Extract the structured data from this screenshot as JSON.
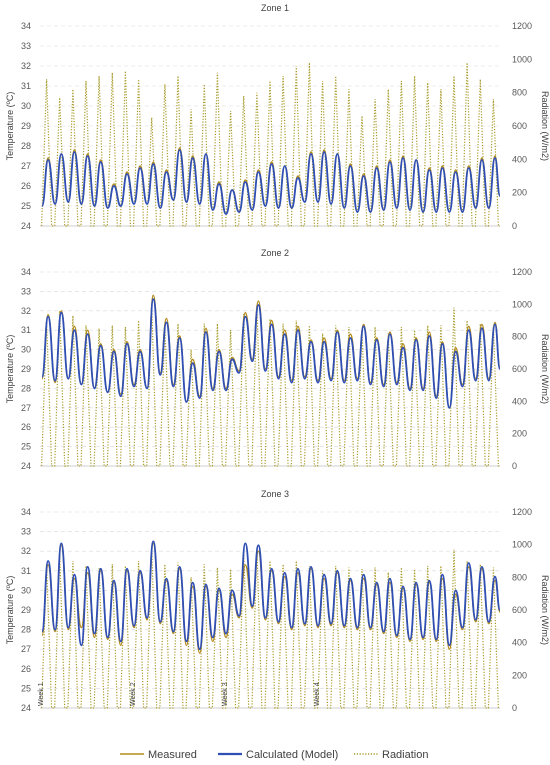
{
  "chart_data": [
    {
      "type": "line",
      "title": "Zone 1",
      "ylabel": "Temperature (ºC)",
      "y2label": "Radiation (W/m2)",
      "ylim": [
        24,
        34
      ],
      "y2lim": [
        0,
        1200
      ],
      "yticks": [
        "24",
        "25",
        "26",
        "27",
        "28",
        "29",
        "30",
        "31",
        "32",
        "33",
        "34"
      ],
      "y2ticks": [
        "0",
        "200",
        "400",
        "600",
        "800",
        "1000",
        "1200"
      ],
      "days": 35,
      "grid": true,
      "series": [
        {
          "name": "Measured",
          "color": "#b38b1d",
          "style": "solid",
          "daily_max": [
            27.4,
            27.6,
            27.8,
            27.6,
            27.3,
            26.1,
            26.7,
            27.0,
            27.2,
            26.8,
            27.9,
            27.5,
            27.6,
            26.2,
            25.8,
            26.3,
            26.8,
            27.2,
            27.0,
            26.5,
            27.7,
            27.8,
            27.6,
            27.1,
            26.6,
            27.0,
            27.3,
            27.5,
            27.3,
            26.9,
            27.0,
            26.8,
            27.0,
            27.4,
            27.5
          ],
          "daily_min": [
            25.0,
            25.1,
            25.2,
            25.1,
            25.0,
            24.9,
            25.0,
            25.1,
            25.1,
            24.9,
            25.3,
            25.2,
            25.1,
            24.8,
            24.6,
            24.7,
            24.8,
            25.0,
            24.9,
            24.9,
            25.2,
            25.2,
            25.1,
            24.9,
            24.7,
            24.7,
            24.8,
            24.9,
            24.8,
            24.7,
            24.7,
            24.7,
            24.7,
            24.9,
            24.9
          ]
        },
        {
          "name": "Calculated (Model)",
          "color": "#2f4fb4",
          "style": "solid",
          "daily_max": [
            27.3,
            27.6,
            27.7,
            27.5,
            27.2,
            26.0,
            26.6,
            26.9,
            27.1,
            26.7,
            27.8,
            27.4,
            27.6,
            26.1,
            25.8,
            26.2,
            26.7,
            27.1,
            27.0,
            26.4,
            27.6,
            27.7,
            27.6,
            27.0,
            26.5,
            26.9,
            27.2,
            27.4,
            27.3,
            26.8,
            26.9,
            26.7,
            26.9,
            27.3,
            27.4
          ],
          "daily_min": [
            25.0,
            25.1,
            25.2,
            25.1,
            25.0,
            24.9,
            25.0,
            25.1,
            25.1,
            24.9,
            25.3,
            25.2,
            25.1,
            24.8,
            24.6,
            24.7,
            24.8,
            25.0,
            24.9,
            24.9,
            25.2,
            25.2,
            25.1,
            24.9,
            24.7,
            24.7,
            24.8,
            24.9,
            24.8,
            24.7,
            24.7,
            24.7,
            24.7,
            24.9,
            24.9
          ]
        },
        {
          "name": "Radiation",
          "color": "#a89b2a",
          "style": "dotted",
          "axis": "right",
          "daily_peak": [
            880,
            770,
            820,
            870,
            900,
            920,
            930,
            880,
            650,
            850,
            900,
            700,
            850,
            920,
            690,
            780,
            800,
            870,
            900,
            960,
            980,
            870,
            900,
            820,
            660,
            760,
            820,
            870,
            900,
            860,
            820,
            900,
            980,
            880,
            760
          ]
        }
      ]
    },
    {
      "type": "line",
      "title": "Zone 2",
      "ylabel": "Temperature (ºC)",
      "y2label": "Radiation (W/m2)",
      "ylim": [
        24,
        34
      ],
      "y2lim": [
        0,
        1200
      ],
      "yticks": [
        "24",
        "25",
        "26",
        "27",
        "28",
        "29",
        "30",
        "31",
        "32",
        "33",
        "34"
      ],
      "y2ticks": [
        "0",
        "200",
        "400",
        "600",
        "800",
        "1000",
        "1200"
      ],
      "days": 35,
      "grid": true,
      "series": [
        {
          "name": "Measured",
          "color": "#b38b1d",
          "style": "solid",
          "daily_max": [
            31.8,
            32.0,
            31.2,
            31.0,
            30.3,
            30.0,
            30.4,
            30.0,
            32.8,
            31.6,
            30.7,
            29.5,
            31.1,
            30.0,
            29.6,
            31.9,
            32.5,
            31.5,
            31.0,
            31.2,
            30.5,
            30.6,
            31.0,
            30.8,
            31.3,
            30.6,
            30.9,
            30.3,
            30.6,
            30.9,
            30.4,
            30.1,
            31.2,
            31.3,
            31.4
          ],
          "daily_min": [
            28.5,
            28.3,
            28.5,
            28.2,
            28.0,
            27.8,
            27.7,
            28.2,
            28.0,
            28.8,
            28.2,
            27.3,
            27.6,
            28.0,
            28.0,
            28.9,
            29.5,
            29.0,
            28.6,
            28.4,
            28.6,
            28.4,
            28.5,
            28.4,
            28.5,
            28.3,
            28.2,
            28.3,
            28.0,
            28.0,
            27.6,
            27.0,
            28.2,
            28.5,
            28.5
          ]
        },
        {
          "name": "Calculated (Model)",
          "color": "#2f4fb4",
          "style": "solid",
          "daily_max": [
            31.7,
            31.9,
            31.0,
            30.8,
            30.2,
            29.9,
            30.3,
            29.9,
            32.6,
            31.4,
            30.6,
            29.3,
            30.9,
            29.9,
            29.5,
            31.7,
            32.3,
            31.3,
            30.8,
            31.0,
            30.4,
            30.4,
            30.9,
            30.6,
            31.2,
            30.5,
            30.8,
            30.1,
            30.5,
            30.7,
            30.3,
            29.9,
            31.0,
            31.1,
            31.3
          ],
          "daily_min": [
            28.6,
            28.4,
            28.5,
            28.2,
            28.0,
            27.8,
            27.6,
            28.1,
            28.0,
            28.7,
            28.1,
            27.3,
            27.5,
            27.9,
            27.9,
            28.8,
            29.4,
            28.9,
            28.5,
            28.3,
            28.5,
            28.3,
            28.4,
            28.3,
            28.4,
            28.2,
            28.1,
            28.2,
            27.9,
            27.9,
            27.5,
            27.0,
            28.1,
            28.4,
            28.4
          ]
        },
        {
          "name": "Radiation",
          "color": "#a89b2a",
          "style": "dotted",
          "axis": "right",
          "daily_peak": [
            900,
            960,
            930,
            870,
            850,
            870,
            860,
            900,
            1000,
            860,
            880,
            720,
            880,
            880,
            840,
            940,
            990,
            910,
            880,
            900,
            870,
            820,
            870,
            860,
            840,
            860,
            820,
            860,
            840,
            870,
            870,
            980,
            900,
            880,
            860
          ]
        }
      ]
    },
    {
      "type": "line",
      "title": "Zone 3",
      "ylabel": "Temperature (ºC)",
      "y2label": "Radiation (W/m2)",
      "ylim": [
        24,
        34
      ],
      "y2lim": [
        0,
        1200
      ],
      "yticks": [
        "24",
        "25",
        "26",
        "27",
        "28",
        "29",
        "30",
        "31",
        "32",
        "33",
        "34"
      ],
      "y2ticks": [
        "0",
        "200",
        "400",
        "600",
        "800",
        "1000",
        "1200"
      ],
      "xticks": [
        "Week 1",
        "Week 2",
        "Week 3",
        "Week 4"
      ],
      "days": 35,
      "grid": true,
      "series": [
        {
          "name": "Measured",
          "color": "#b38b1d",
          "style": "solid",
          "daily_max": [
            31.3,
            32.3,
            30.6,
            30.9,
            31.0,
            30.4,
            31.0,
            30.9,
            32.4,
            30.5,
            31.1,
            30.2,
            30.2,
            30.0,
            29.8,
            31.3,
            32.0,
            31.0,
            30.7,
            30.9,
            31.1,
            30.6,
            30.9,
            30.5,
            30.6,
            30.3,
            30.4,
            30.1,
            30.3,
            30.4,
            30.6,
            29.8,
            31.2,
            31.1,
            30.5
          ],
          "daily_min": [
            27.7,
            27.9,
            28.0,
            28.1,
            27.6,
            27.5,
            27.2,
            28.1,
            28.5,
            28.3,
            27.8,
            27.2,
            26.8,
            27.4,
            27.6,
            28.6,
            29.1,
            28.5,
            28.3,
            28.0,
            28.2,
            28.1,
            28.2,
            28.1,
            28.0,
            28.0,
            27.8,
            27.6,
            27.4,
            27.5,
            27.4,
            27.0,
            28.0,
            28.4,
            28.3
          ]
        },
        {
          "name": "Calculated (Model)",
          "color": "#2f4fb4",
          "style": "solid",
          "daily_max": [
            31.5,
            32.4,
            30.8,
            31.2,
            31.1,
            30.5,
            31.1,
            31.0,
            32.5,
            30.6,
            31.2,
            30.4,
            30.3,
            30.1,
            30.0,
            32.4,
            32.3,
            31.1,
            30.9,
            31.1,
            31.2,
            30.8,
            31.0,
            30.6,
            30.8,
            30.4,
            30.6,
            30.2,
            30.4,
            30.5,
            30.8,
            30.0,
            31.4,
            31.2,
            30.7
          ],
          "daily_min": [
            27.9,
            28.0,
            28.1,
            27.2,
            27.8,
            27.6,
            27.4,
            28.2,
            28.6,
            28.4,
            27.9,
            27.4,
            27.0,
            27.6,
            27.8,
            28.7,
            29.2,
            28.6,
            28.4,
            28.1,
            28.3,
            28.2,
            28.3,
            28.2,
            28.1,
            28.1,
            27.9,
            27.7,
            27.5,
            27.6,
            27.5,
            27.2,
            28.1,
            28.5,
            28.4
          ]
        },
        {
          "name": "Radiation",
          "color": "#a89b2a",
          "style": "dotted",
          "axis": "right",
          "daily_peak": [
            880,
            940,
            900,
            870,
            860,
            880,
            870,
            900,
            990,
            880,
            890,
            800,
            880,
            860,
            850,
            960,
            980,
            900,
            880,
            900,
            870,
            840,
            870,
            860,
            850,
            860,
            830,
            860,
            850,
            870,
            870,
            970,
            900,
            880,
            860
          ]
        }
      ]
    }
  ],
  "legend": [
    "Measured",
    "Calculated (Model)",
    "Radiation"
  ]
}
